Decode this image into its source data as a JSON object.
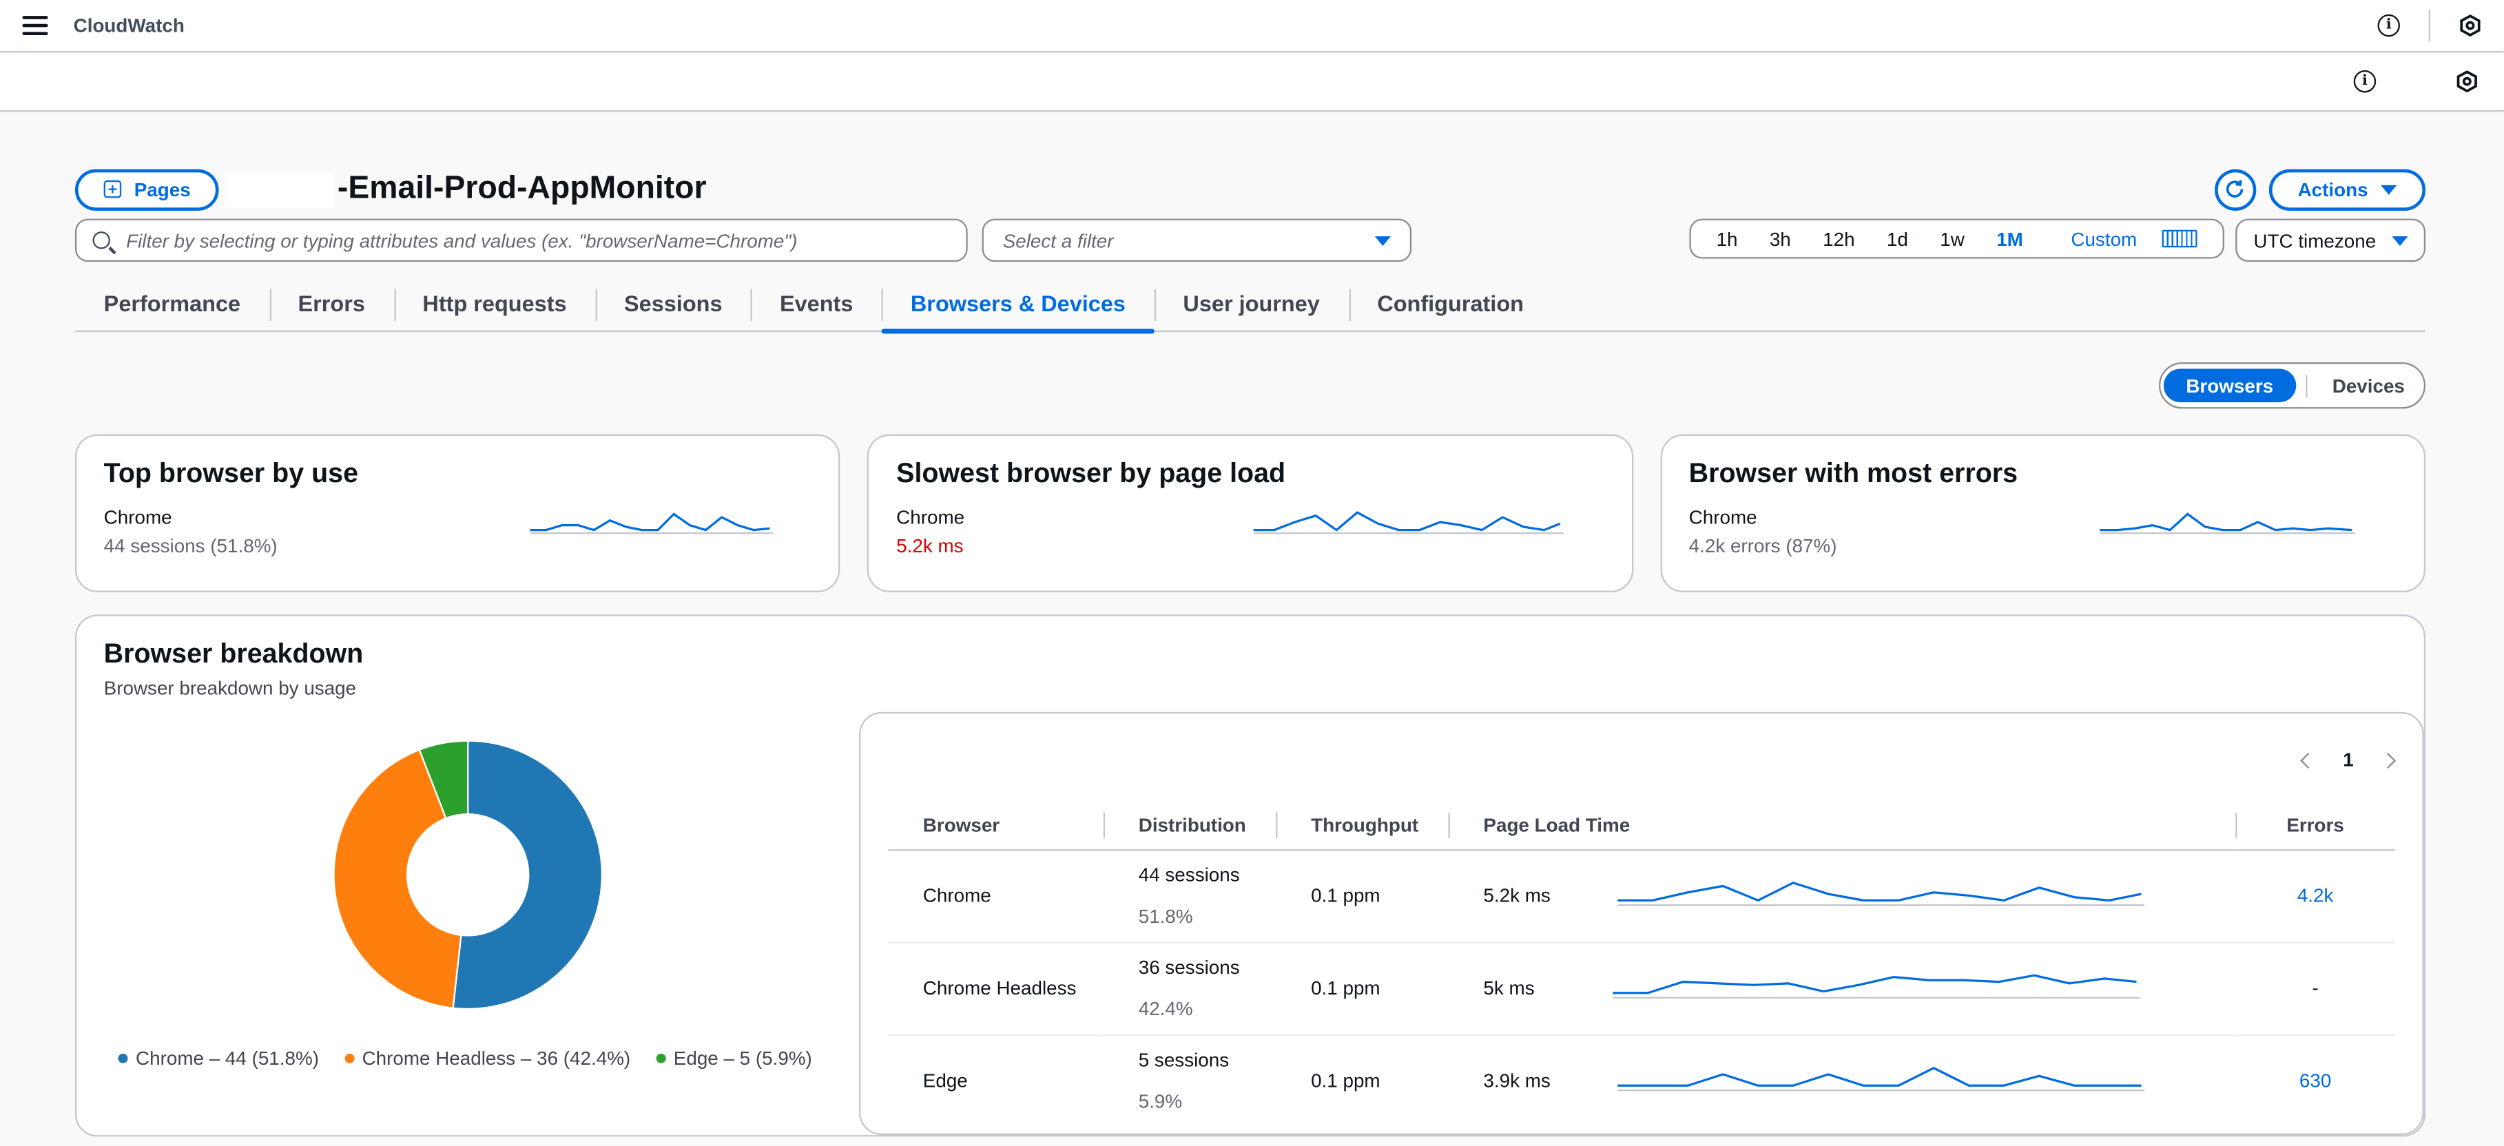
{
  "topbar": {
    "brand": "CloudWatch"
  },
  "header": {
    "pages_label": "Pages",
    "title": "-Email-Prod-AppMonitor",
    "actions_label": "Actions"
  },
  "filters": {
    "search_placeholder": "Filter by selecting or typing attributes and values (ex. \"browserName=Chrome\")",
    "select_placeholder": "Select a filter",
    "ranges": [
      "1h",
      "3h",
      "12h",
      "1d",
      "1w",
      "1M"
    ],
    "selected_range": "1M",
    "custom_label": "Custom",
    "timezone": "UTC timezone"
  },
  "tabs": [
    "Performance",
    "Errors",
    "Http requests",
    "Sessions",
    "Events",
    "Browsers & Devices",
    "User journey",
    "Configuration"
  ],
  "active_tab": "Browsers & Devices",
  "toggle": {
    "on": "Browsers",
    "off": "Devices"
  },
  "cards": [
    {
      "title": "Top browser by use",
      "name": "Chrome",
      "sub": "44 sessions (51.8%)"
    },
    {
      "title": "Slowest browser by page load",
      "name": "Chrome",
      "sub": "5.2k ms"
    },
    {
      "title": "Browser with most errors",
      "name": "Chrome",
      "sub": "4.2k errors (87%)"
    }
  ],
  "breakdown": {
    "title": "Browser breakdown",
    "description": "Browser breakdown by usage",
    "legend": [
      "Chrome – 44 (51.8%)",
      "Chrome Headless – 36 (42.4%)",
      "Edge – 5 (5.9%)"
    ],
    "colors": {
      "chrome": "#1f77b4",
      "headless": "#ff7f0e",
      "edge": "#2ca02c"
    }
  },
  "chart_data": {
    "type": "pie",
    "categories": [
      "Chrome",
      "Chrome Headless",
      "Edge"
    ],
    "values": [
      44,
      36,
      5
    ],
    "percent": [
      51.8,
      42.4,
      5.9
    ],
    "title": "Browser breakdown"
  },
  "table": {
    "page": "1",
    "headers": [
      "Browser",
      "Distribution",
      "Throughput",
      "Page Load Time",
      "Errors"
    ],
    "rows": [
      {
        "browser": "Chrome",
        "sessions": "44 sessions",
        "pct": "51.8%",
        "throughput": "0.1 ppm",
        "load": "5.2k ms",
        "errors": "4.2k"
      },
      {
        "browser": "Chrome Headless",
        "sessions": "36 sessions",
        "pct": "42.4%",
        "throughput": "0.1 ppm",
        "load": "5k ms",
        "errors": "-"
      },
      {
        "browser": "Edge",
        "sessions": "5 sessions",
        "pct": "5.9%",
        "throughput": "0.1 ppm",
        "load": "3.9k ms",
        "errors": "630"
      }
    ]
  }
}
